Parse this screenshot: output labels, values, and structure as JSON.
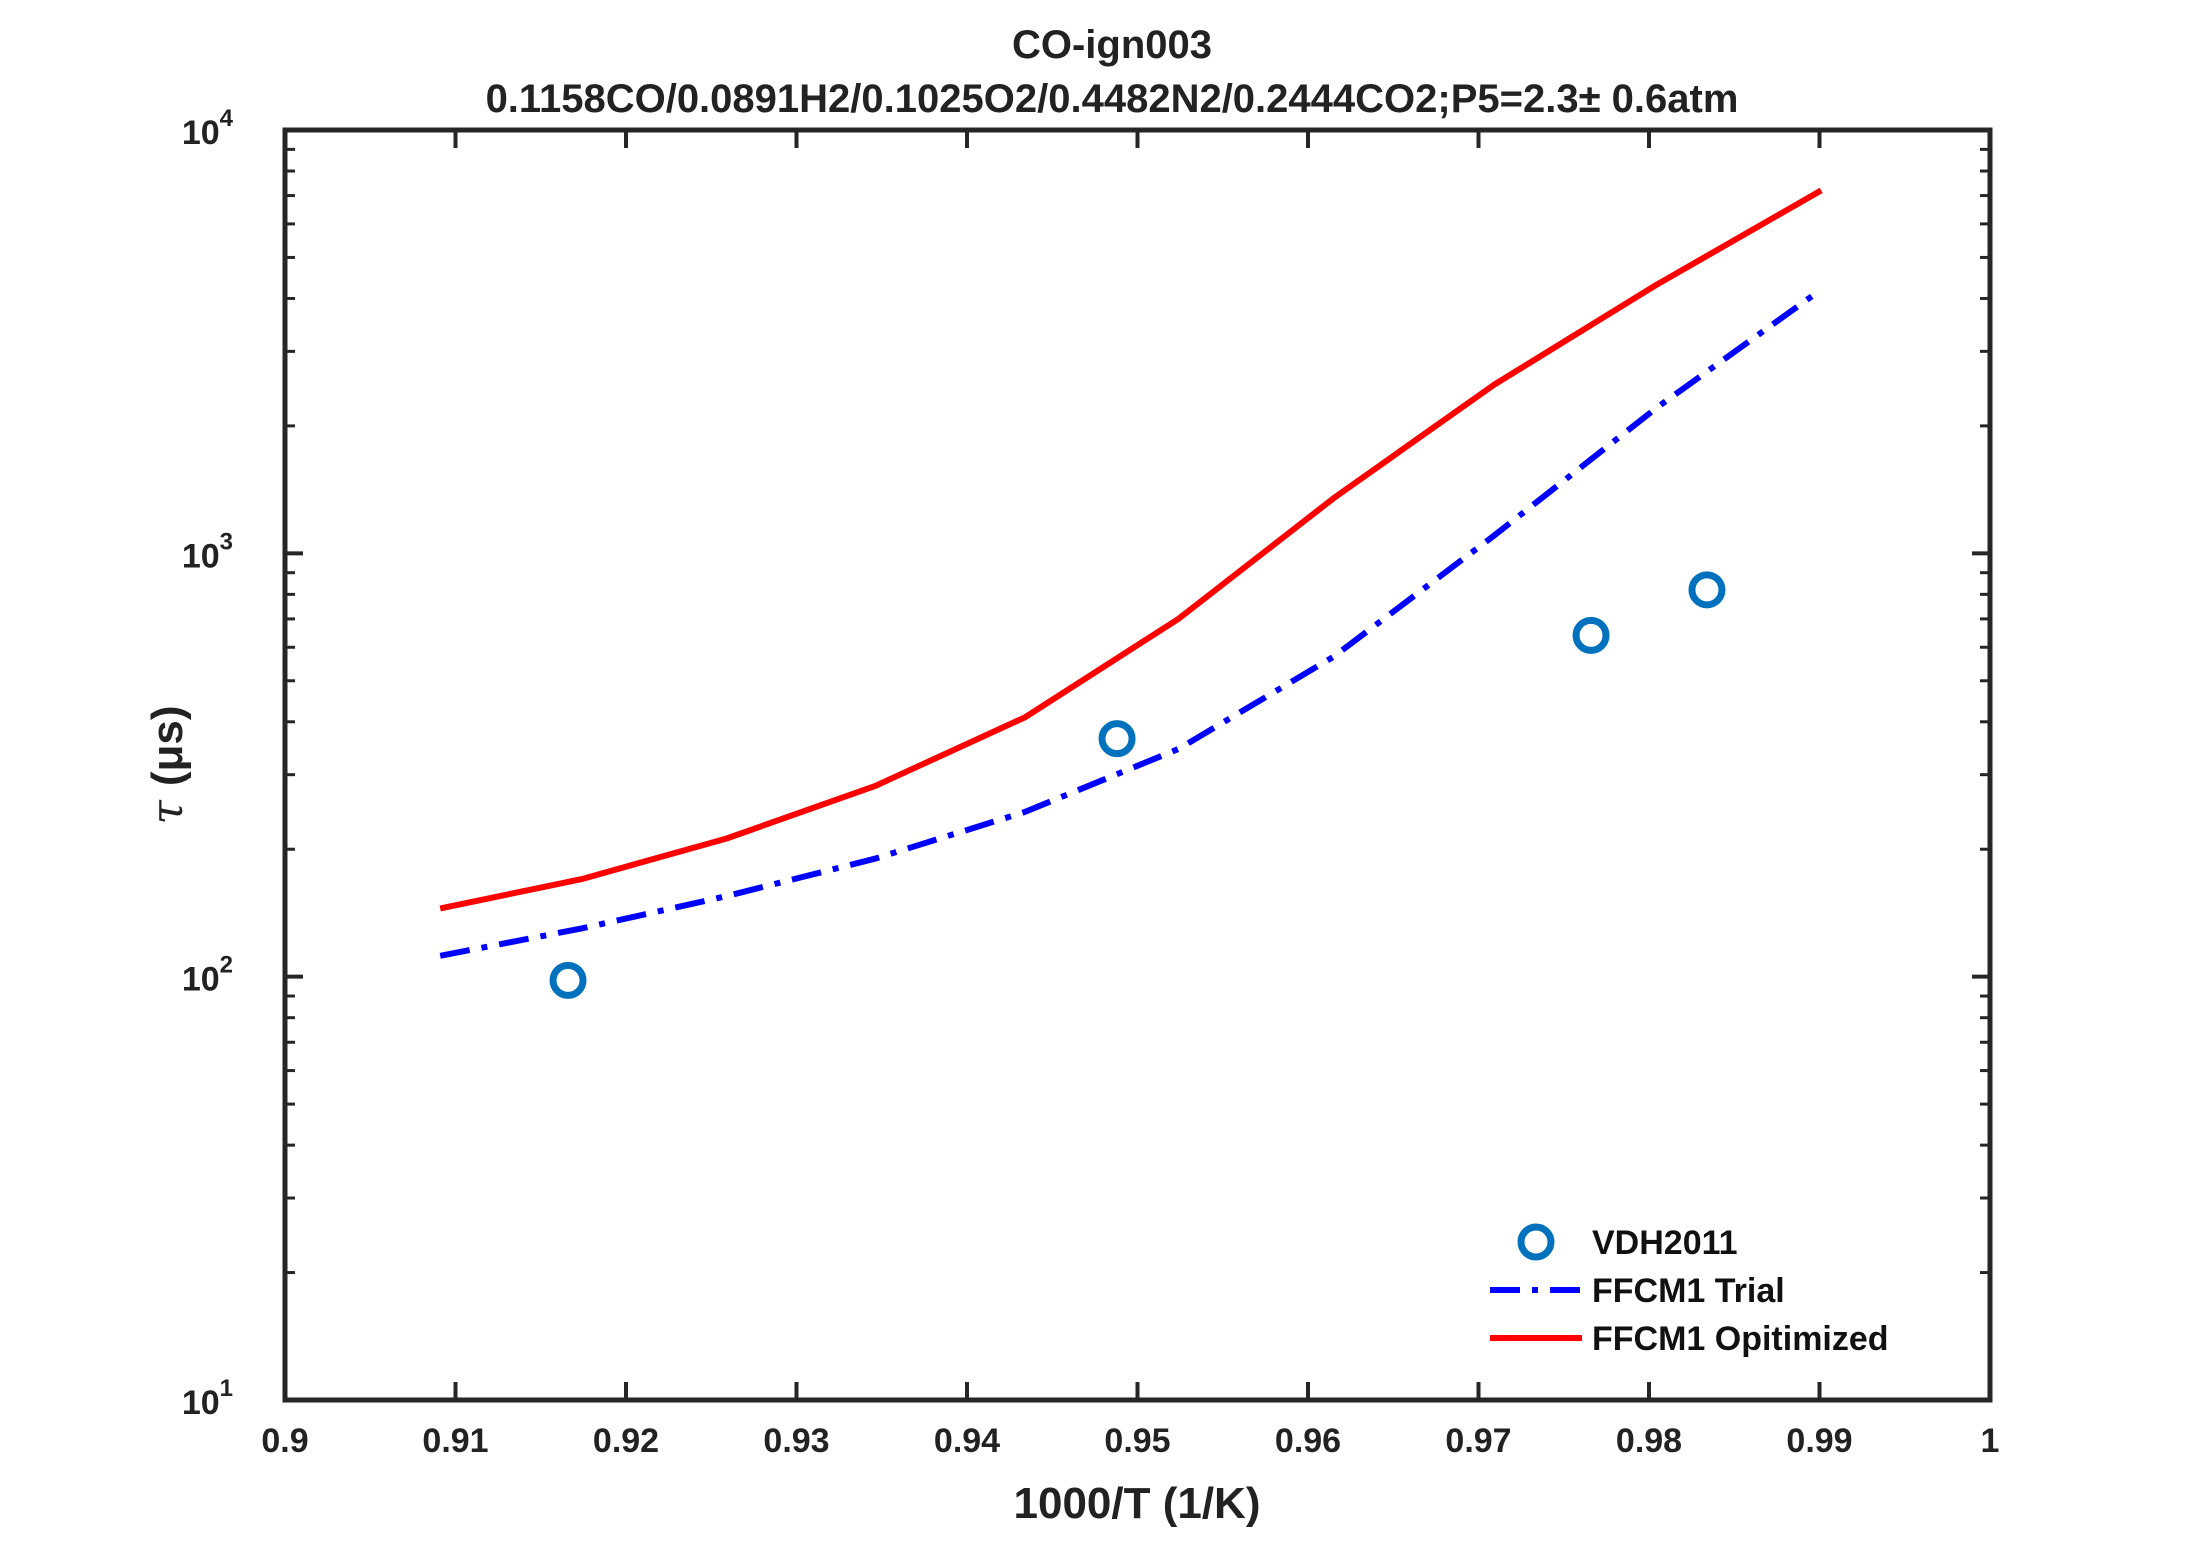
{
  "chart_data": {
    "type": "line",
    "title": "CO-ign003",
    "subtitle": "0.1158CO/0.0891H2/0.1025O2/0.4482N2/0.2444CO2;P5=2.3± 0.6atm",
    "xlabel": "1000/T (1/K)",
    "ylabel_symbol": "τ",
    "ylabel_unit": "(μs)",
    "xlim": [
      0.9,
      1.0
    ],
    "ylim": [
      10,
      10000
    ],
    "yscale": "log",
    "x_ticks": [
      "0.9",
      "0.91",
      "0.92",
      "0.93",
      "0.94",
      "0.95",
      "0.96",
      "0.97",
      "0.98",
      "0.99",
      "1"
    ],
    "y_ticks": [
      {
        "base": "10",
        "exp": "1"
      },
      {
        "base": "10",
        "exp": "2"
      },
      {
        "base": "10",
        "exp": "3"
      },
      {
        "base": "10",
        "exp": "4"
      }
    ],
    "legend_position": "bottom-right",
    "series": [
      {
        "name": "VDH2011",
        "style": "markers",
        "color": "#0072BD",
        "x": [
          0.9166,
          0.9488,
          0.9766,
          0.9834
        ],
        "y": [
          98,
          365,
          640,
          820
        ]
      },
      {
        "name": "FFCM1 Trial",
        "style": "dash-dot",
        "color": "#0000FF",
        "x": [
          0.9091,
          0.9174,
          0.9259,
          0.9346,
          0.9434,
          0.9524,
          0.9615,
          0.9709,
          0.9804,
          0.9901
        ],
        "y": [
          112,
          130,
          155,
          190,
          245,
          345,
          570,
          1100,
          2200,
          4200
        ]
      },
      {
        "name": "FFCM1 Opitimized",
        "style": "solid",
        "color": "#FF0000",
        "x": [
          0.9091,
          0.9174,
          0.9259,
          0.9346,
          0.9434,
          0.9524,
          0.9615,
          0.9709,
          0.9804,
          0.9901
        ],
        "y": [
          145,
          170,
          212,
          282,
          410,
          700,
          1350,
          2500,
          4300,
          7200
        ]
      }
    ]
  }
}
